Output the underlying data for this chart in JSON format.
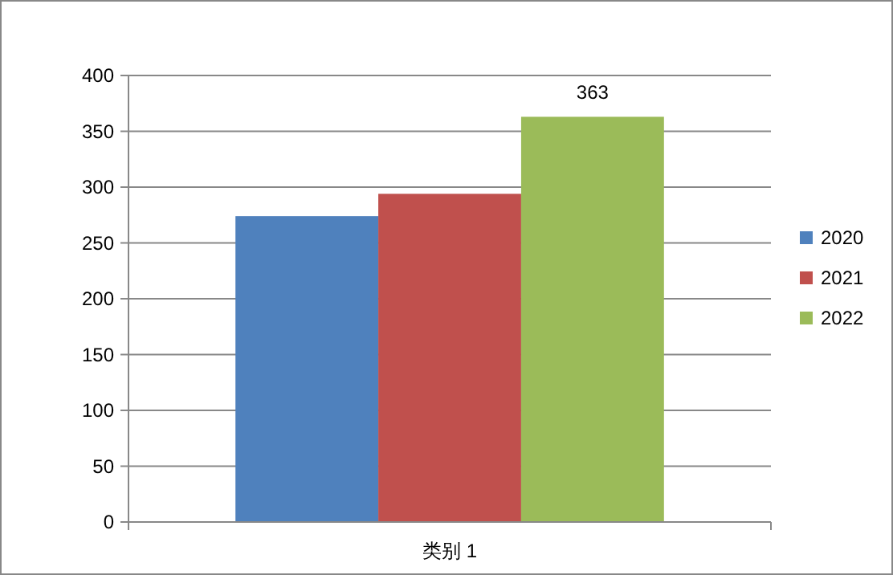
{
  "chart_data": {
    "type": "bar",
    "categories": [
      "类别 1"
    ],
    "series": [
      {
        "name": "2020",
        "color": "#4f81bd",
        "values": [
          274
        ],
        "value_labels": [
          null
        ]
      },
      {
        "name": "2021",
        "color": "#c0504d",
        "values": [
          294
        ],
        "value_labels": [
          null
        ]
      },
      {
        "name": "2022",
        "color": "#9bbb59",
        "values": [
          363
        ],
        "value_labels": [
          "363"
        ]
      }
    ],
    "ylim": [
      0,
      400
    ],
    "yticks": [
      0,
      50,
      100,
      150,
      200,
      250,
      300,
      350,
      400
    ],
    "grid": "y",
    "legend": "right"
  }
}
